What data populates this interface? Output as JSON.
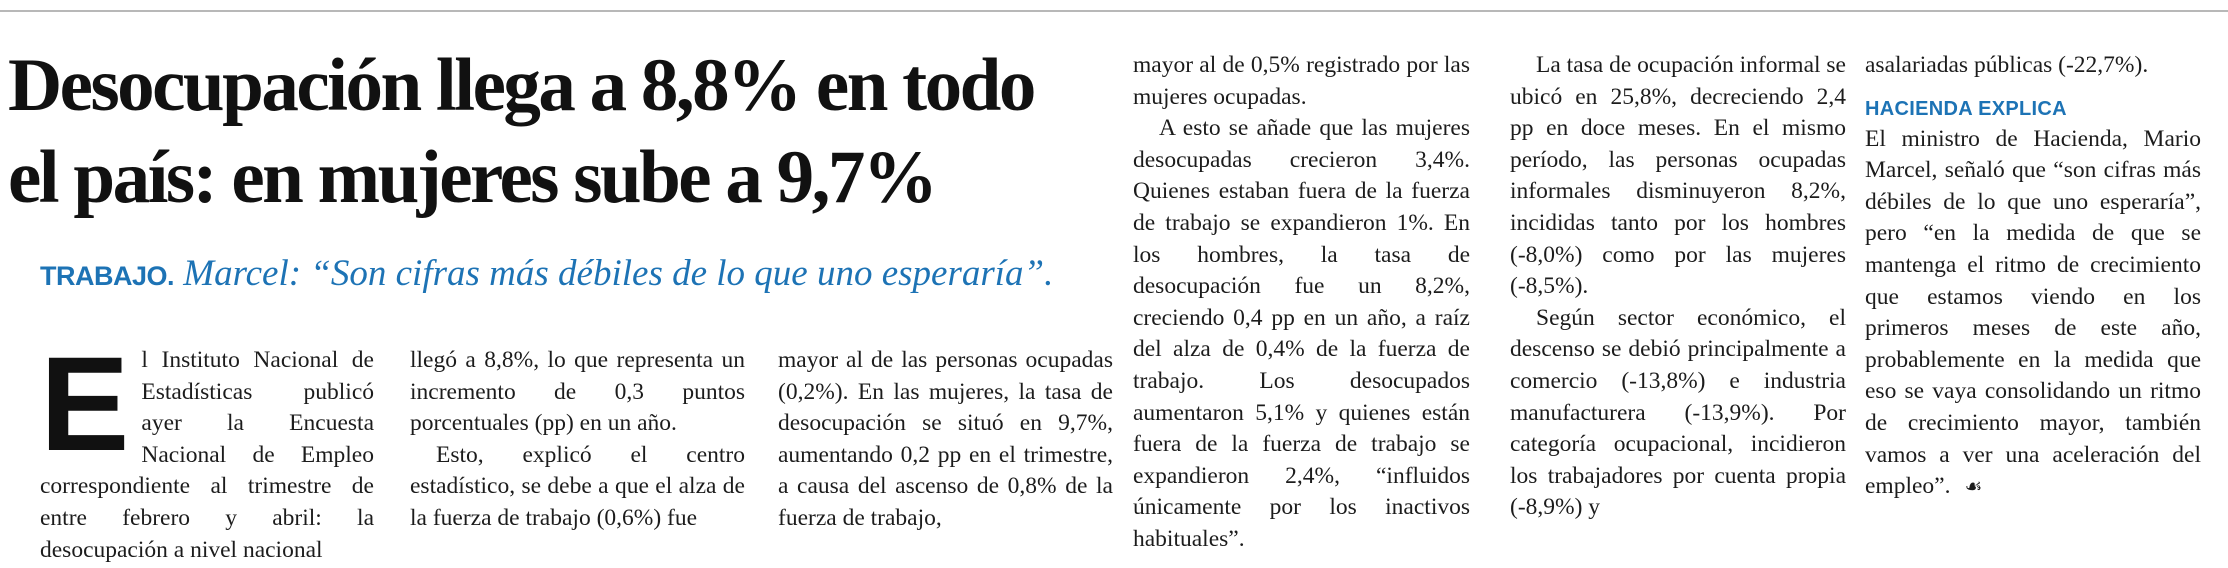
{
  "headline": {
    "line1": "Desocupación llega a 8,8% en todo",
    "line2": "el país: en mujeres sube a 9,7%"
  },
  "kicker": {
    "section": "TRABAJO.",
    "quote": "Marcel: “Son cifras más débiles de lo que uno esperaría”."
  },
  "body": {
    "dropcap": "E",
    "col1": "l Instituto Nacional de Estadísticas publicó ayer la Encuesta Nacional de Empleo correspondiente al trimestre de entre febrero y abril: la desocupación a nivel nacional",
    "col2_p1": "llegó a 8,8%, lo que representa un incremento de 0,3 puntos porcentuales (pp) en un año.",
    "col2_p2": "Esto, explicó el centro estadístico, se debe a que el alza de la fuerza de trabajo (0,6%) fue",
    "col3": "mayor al de las personas ocupadas (0,2%). En las mujeres, la tasa de desocupación se situó en 9,7%, aumentando 0,2 pp en el trimestre, a causa del ascenso de 0,8% de la fuerza de trabajo,",
    "col4_p1": "mayor al de 0,5% registrado por las mujeres ocupadas.",
    "col4_p2": "A esto se añade que las mujeres desocupadas crecieron 3,4%. Quienes estaban fuera de la fuerza de trabajo se expandieron 1%. En los hombres, la tasa de desocupación fue un 8,2%, creciendo 0,4 pp en un año, a raíz del alza de 0,4% de la fuerza de trabajo. Los desocupados aumentaron 5,1% y quienes están fuera de la fuerza de trabajo se expandieron 2,4%, “influidos únicamente por los inactivos habituales”.",
    "col5_p1": "La tasa de ocupación informal se ubicó en 25,8%, decreciendo 2,4 pp en doce meses. En el mismo período, las personas ocupadas informales disminuyeron 8,2%, incididas tanto por los hombres (-8,0%) como por las mujeres (-8,5%).",
    "col5_p2": "Según sector económico, el descenso se debió principalmente a comercio (-13,8%) e industria manufacturera (-13,9%). Por categoría ocupacional, incidieron los trabajadores por cuenta propia (-8,9%) y",
    "col6_p1": "asalariadas públicas (-22,7%).",
    "col6_subhead": "HACIENDA EXPLICA",
    "col6_p2": "El ministro de Hacienda, Mario Marcel, señaló que “son cifras más débiles de lo que uno esperaría”, pero “en la medida de que se mantenga el ritmo de crecimiento que estamos viendo en los primeros meses de este año, probablemente en la medida que eso se vaya consolidando un ritmo de crecimiento mayor, también vamos a ver una aceleración del empleo”.",
    "end_mark": "☙"
  }
}
